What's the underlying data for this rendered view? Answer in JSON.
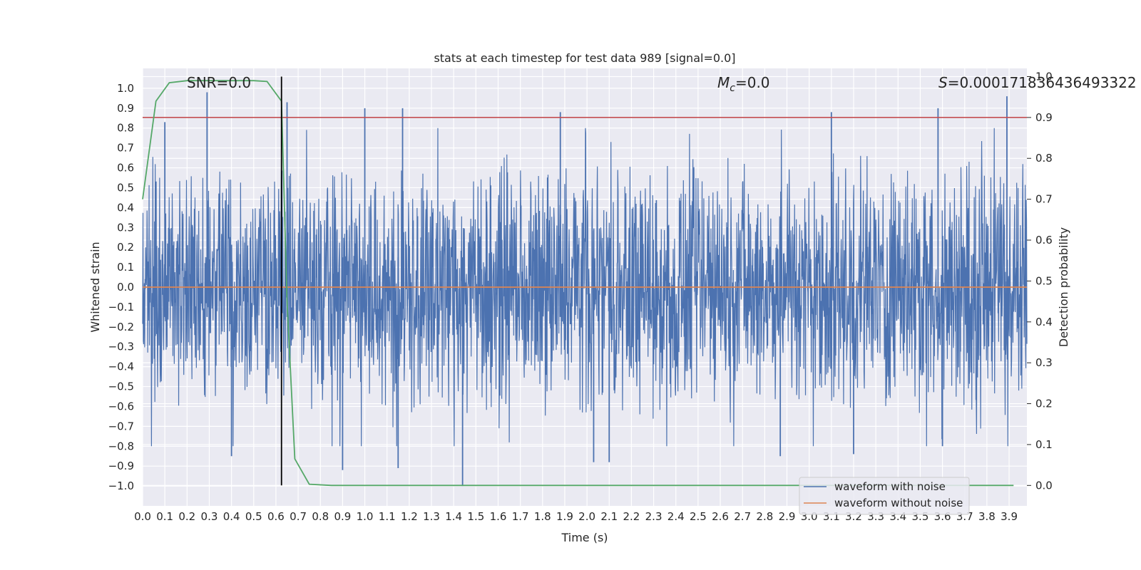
{
  "chart_data": {
    "type": "line",
    "title": "stats at each timestep for test data 989 [signal=0.0]",
    "xlabel": "Time (s)",
    "ylabel": "Whitened strain",
    "ylabel_right": "Detection probability",
    "xlim": [
      0.0,
      3.98
    ],
    "ylim": [
      -1.1,
      1.1
    ],
    "ylim_right": [
      -0.05,
      1.02
    ],
    "x_ticks": [
      "0.0",
      "0.1",
      "0.2",
      "0.3",
      "0.4",
      "0.5",
      "0.6",
      "0.7",
      "0.8",
      "0.9",
      "1.0",
      "1.1",
      "1.2",
      "1.3",
      "1.4",
      "1.5",
      "1.6",
      "1.7",
      "1.8",
      "1.9",
      "2.0",
      "2.1",
      "2.2",
      "2.3",
      "2.4",
      "2.5",
      "2.6",
      "2.7",
      "2.8",
      "2.9",
      "3.0",
      "3.1",
      "3.2",
      "3.3",
      "3.4",
      "3.5",
      "3.6",
      "3.7",
      "3.8",
      "3.9"
    ],
    "y_ticks_left": [
      "1.0",
      "0.9",
      "0.8",
      "0.7",
      "0.6",
      "0.5",
      "0.4",
      "0.3",
      "0.2",
      "0.1",
      "0.0",
      "−0.1",
      "−0.2",
      "−0.3",
      "−0.4",
      "−0.5",
      "−0.6",
      "−0.7",
      "−0.8",
      "−0.9",
      "−1.0"
    ],
    "y_ticks_right": [
      "1.0",
      "0.9",
      "0.8",
      "0.7",
      "0.6",
      "0.5",
      "0.4",
      "0.3",
      "0.2",
      "0.1",
      "0.0"
    ],
    "annotations": {
      "snr": "SNR=0.0",
      "mc_symbol": "M",
      "mc_sub": "c",
      "mc_value": "=0.0",
      "s_symbol": "S",
      "s_value": "=0.000171836436493322"
    },
    "threshold": {
      "value": 0.9,
      "axis": "right",
      "color": "#c44e52"
    },
    "vline": {
      "x": 0.625,
      "color": "#000000",
      "y_range_right": [
        0.0,
        1.0
      ]
    },
    "series": [
      {
        "name": "waveform with noise",
        "axis": "left",
        "color": "#4c72b0",
        "style": "noise",
        "amplitude_typical": 0.4,
        "extremes": [
          {
            "x": 0.29,
            "y": 0.98
          },
          {
            "x": 0.65,
            "y": 0.93
          },
          {
            "x": 1.44,
            "y": -1.0
          },
          {
            "x": 3.89,
            "y": 0.96
          },
          {
            "x": 0.4,
            "y": -0.85
          },
          {
            "x": 0.9,
            "y": -0.92
          },
          {
            "x": 1.15,
            "y": -0.91
          },
          {
            "x": 2.03,
            "y": -0.88
          },
          {
            "x": 2.1,
            "y": -0.88
          },
          {
            "x": 1.0,
            "y": 0.9
          },
          {
            "x": 1.17,
            "y": 0.9
          },
          {
            "x": 1.88,
            "y": 0.88
          },
          {
            "x": 3.1,
            "y": 0.88
          },
          {
            "x": 3.58,
            "y": 0.9
          },
          {
            "x": 2.87,
            "y": -0.85
          },
          {
            "x": 3.2,
            "y": -0.84
          },
          {
            "x": 3.6,
            "y": -0.8
          },
          {
            "x": 0.1,
            "y": 0.83
          }
        ]
      },
      {
        "name": "waveform without noise",
        "axis": "left",
        "color": "#dd8452",
        "x": [
          0.0,
          3.98
        ],
        "y": [
          0.0,
          0.0
        ]
      },
      {
        "name": "",
        "axis": "right",
        "color": "#55a868",
        "x": [
          0.0,
          0.02,
          0.06,
          0.12,
          0.2,
          0.3,
          0.4,
          0.5,
          0.56,
          0.625,
          0.65,
          0.685,
          0.75,
          0.85,
          1.0,
          2.0,
          3.0,
          3.92
        ],
        "y": [
          0.7,
          0.78,
          0.94,
          0.985,
          0.99,
          0.99,
          0.99,
          0.99,
          0.988,
          0.94,
          0.45,
          0.065,
          0.003,
          0.0,
          0.0,
          0.0,
          0.0,
          0.0
        ]
      }
    ],
    "legend": {
      "placement": "lower-right",
      "entries": [
        {
          "label": "waveform with noise",
          "color": "#4c72b0"
        },
        {
          "label": "waveform without noise",
          "color": "#dd8452"
        }
      ]
    },
    "grid": true,
    "background": "#eaeaf2"
  }
}
